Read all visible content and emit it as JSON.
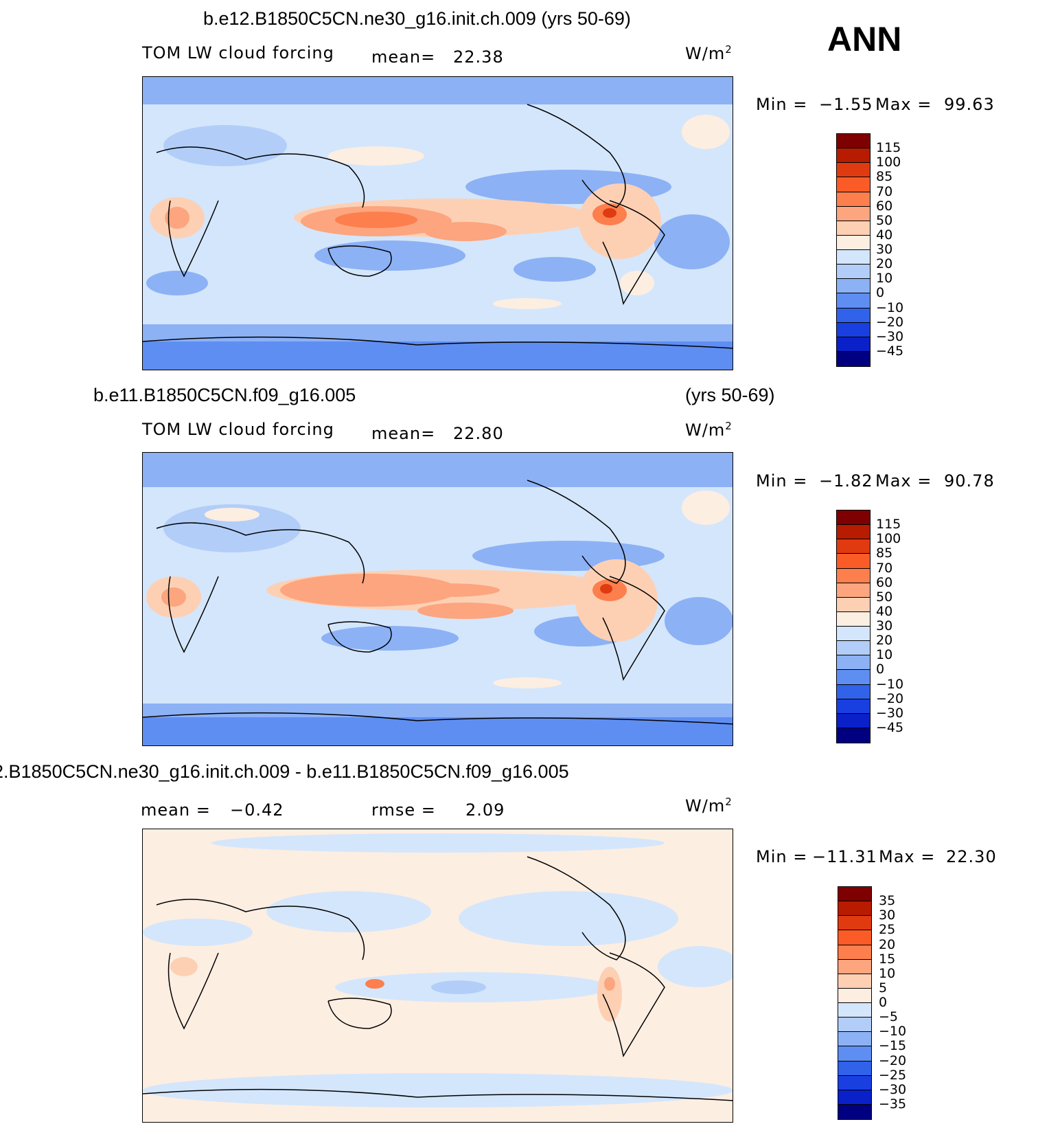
{
  "season": "ANN",
  "units_base": "W/m",
  "units_exp": "2",
  "panels": [
    {
      "title": "b.e12.B1850C5CN.ne30_g16.init.ch.009 (yrs 50-69)",
      "title_right": "",
      "variable": "TOM LW cloud forcing",
      "stat1_label": "mean=",
      "stat1_value": "22.38",
      "stat2_label": "",
      "stat2_value": "",
      "min_label": "Min =",
      "min_value": "−1.55",
      "max_label": "Max =",
      "max_value": "99.63",
      "colorbar_labels": [
        "115",
        "100",
        "85",
        "70",
        "60",
        "50",
        "40",
        "30",
        "20",
        "10",
        "0",
        "−10",
        "−20",
        "−30",
        "−45"
      ]
    },
    {
      "title": "b.e11.B1850C5CN.f09_g16.005",
      "title_right": "(yrs 50-69)",
      "variable": "TOM LW cloud forcing",
      "stat1_label": "mean=",
      "stat1_value": "22.80",
      "stat2_label": "",
      "stat2_value": "",
      "min_label": "Min =",
      "min_value": "−1.82",
      "max_label": "Max =",
      "max_value": "90.78",
      "colorbar_labels": [
        "115",
        "100",
        "85",
        "70",
        "60",
        "50",
        "40",
        "30",
        "20",
        "10",
        "0",
        "−10",
        "−20",
        "−30",
        "−45"
      ]
    },
    {
      "title": "2.B1850C5CN.ne30_g16.init.ch.009 - b.e11.B1850C5CN.f09_g16.005",
      "title_right": "",
      "variable": "",
      "stat1_label": "mean =",
      "stat1_value": "−0.42",
      "stat2_label": "rmse =",
      "stat2_value": "2.09",
      "min_label": "Min =",
      "min_value": "−11.31",
      "max_label": "Max =",
      "max_value": "22.30",
      "colorbar_labels": [
        "35",
        "30",
        "25",
        "20",
        "15",
        "10",
        "5",
        "0",
        "−5",
        "−10",
        "−15",
        "−20",
        "−25",
        "−30",
        "−35"
      ]
    }
  ],
  "colors": {
    "field_palette": [
      "#7f0000",
      "#b71c00",
      "#e03a10",
      "#fb5c27",
      "#fc7f4d",
      "#fca57f",
      "#fdd0b4",
      "#fdeee2",
      "#d4e6fb",
      "#b2cef8",
      "#8cb1f5",
      "#5f8ef2",
      "#3062ea",
      "#1a3fe0",
      "#0a20c8",
      "#000080"
    ],
    "diff_palette": [
      "#7f0000",
      "#b71c00",
      "#e03a10",
      "#fb5c27",
      "#fc7f4d",
      "#fca57f",
      "#fdd0b4",
      "#fdeee2",
      "#d4e6fb",
      "#b2cef8",
      "#8cb1f5",
      "#5f8ef2",
      "#3062ea",
      "#1a3fe0",
      "#0a20c8",
      "#000080"
    ]
  }
}
